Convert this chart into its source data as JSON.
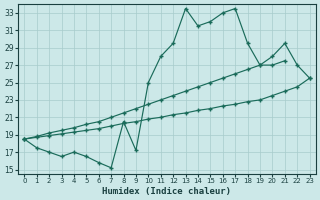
{
  "xlabel": "Humidex (Indice chaleur)",
  "bg_color": "#cce8e8",
  "grid_color": "#a8cccc",
  "line_color": "#1a6b5a",
  "xlim": [
    -0.5,
    23.5
  ],
  "ylim": [
    14.5,
    34.0
  ],
  "xticks": [
    0,
    1,
    2,
    3,
    4,
    5,
    6,
    7,
    8,
    9,
    10,
    11,
    12,
    13,
    14,
    15,
    16,
    17,
    18,
    19,
    20,
    21,
    22,
    23
  ],
  "yticks": [
    15,
    17,
    19,
    21,
    23,
    25,
    27,
    29,
    31,
    33
  ],
  "s1_x": [
    0,
    1,
    2,
    3,
    4,
    5,
    6,
    7,
    8,
    9,
    10,
    11,
    12,
    13,
    14,
    15,
    16,
    17,
    18,
    19,
    20,
    21
  ],
  "s1_y": [
    18.5,
    17.5,
    17.0,
    16.5,
    17.0,
    16.5,
    15.8,
    15.2,
    20.5,
    17.2,
    25.0,
    28.0,
    29.5,
    33.5,
    31.5,
    32.0,
    33.0,
    33.5,
    29.5,
    27.0,
    27.0,
    27.5
  ],
  "s2_x": [
    0,
    1,
    2,
    3,
    4,
    5,
    6,
    7,
    8,
    9,
    10,
    11,
    12,
    13,
    14,
    15,
    16,
    17,
    18,
    19,
    20,
    21,
    22,
    23
  ],
  "s2_y": [
    18.5,
    18.8,
    19.2,
    19.5,
    19.8,
    20.2,
    20.5,
    21.0,
    21.5,
    22.0,
    22.5,
    23.0,
    23.5,
    24.0,
    24.5,
    25.0,
    25.5,
    26.0,
    26.5,
    27.0,
    28.0,
    29.5,
    27.0,
    25.5
  ],
  "s3_x": [
    0,
    1,
    2,
    3,
    4,
    5,
    6,
    7,
    8,
    9,
    10,
    11,
    12,
    13,
    14,
    15,
    16,
    17,
    18,
    19,
    20,
    21,
    22,
    23
  ],
  "s3_y": [
    18.5,
    18.7,
    18.9,
    19.1,
    19.3,
    19.5,
    19.7,
    20.0,
    20.3,
    20.5,
    20.8,
    21.0,
    21.3,
    21.5,
    21.8,
    22.0,
    22.3,
    22.5,
    22.8,
    23.0,
    23.5,
    24.0,
    24.5,
    25.5
  ]
}
